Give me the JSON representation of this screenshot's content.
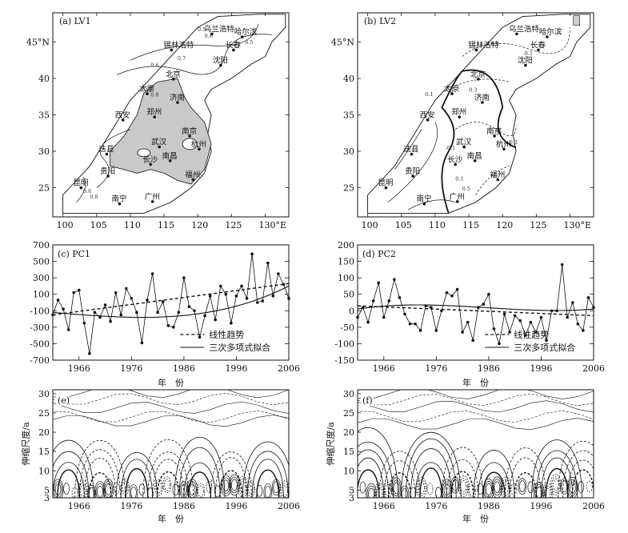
{
  "chart_data": [
    {
      "id": "a",
      "type": "map",
      "title": "(a) LV1",
      "lon_ticks": [
        "100",
        "105",
        "110",
        "115",
        "120",
        "125",
        "130°E"
      ],
      "lat_ticks": [
        "25",
        "30",
        "35",
        "40",
        "45°N"
      ],
      "cities": [
        {
          "name": "哈尔滨",
          "lon": 126.6,
          "lat": 45.7
        },
        {
          "name": "乌兰浩特",
          "lon": 122.1,
          "lat": 46.1
        },
        {
          "name": "长春",
          "lon": 125.3,
          "lat": 43.9
        },
        {
          "name": "锡林浩特",
          "lon": 116.1,
          "lat": 43.9
        },
        {
          "name": "沈阳",
          "lon": 123.4,
          "lat": 41.8
        },
        {
          "name": "北京",
          "lon": 116.4,
          "lat": 39.9
        },
        {
          "name": "太原",
          "lon": 112.5,
          "lat": 37.9
        },
        {
          "name": "济南",
          "lon": 117.0,
          "lat": 36.7
        },
        {
          "name": "郑州",
          "lon": 113.6,
          "lat": 34.7
        },
        {
          "name": "西安",
          "lon": 108.9,
          "lat": 34.3
        },
        {
          "name": "南京",
          "lon": 118.8,
          "lat": 32.1
        },
        {
          "name": "武汉",
          "lon": 114.3,
          "lat": 30.6
        },
        {
          "name": "杭州",
          "lon": 120.2,
          "lat": 30.3
        },
        {
          "name": "南昌",
          "lon": 115.9,
          "lat": 28.7
        },
        {
          "name": "长沙",
          "lon": 113.0,
          "lat": 28.2
        },
        {
          "name": "迭县",
          "lon": 106.5,
          "lat": 29.6
        },
        {
          "name": "贵阳",
          "lon": 106.7,
          "lat": 26.6
        },
        {
          "name": "昆明",
          "lon": 102.7,
          "lat": 25.0
        },
        {
          "name": "福州",
          "lon": 119.3,
          "lat": 26.1
        },
        {
          "name": "南宁",
          "lon": 108.4,
          "lat": 22.8
        },
        {
          "name": "广州",
          "lon": 113.3,
          "lat": 23.1
        }
      ],
      "contour_labels": [
        "0.5",
        "0.6",
        "0.5",
        "0.7",
        "0.6",
        "0.9",
        "0.8",
        "0.6",
        "0.8"
      ]
    },
    {
      "id": "b",
      "type": "map",
      "title": "(b) LV2",
      "lon_ticks": [
        "100",
        "105",
        "110",
        "115",
        "120",
        "125",
        "130°E"
      ],
      "lat_ticks": [
        "25",
        "30",
        "35",
        "40",
        "45°N"
      ],
      "cities": [
        {
          "name": "哈尔滨",
          "lon": 126.6,
          "lat": 45.7
        },
        {
          "name": "乌兰浩特",
          "lon": 122.1,
          "lat": 46.1
        },
        {
          "name": "长春",
          "lon": 125.3,
          "lat": 43.9
        },
        {
          "name": "锡林浩特",
          "lon": 116.1,
          "lat": 43.9
        },
        {
          "name": "沈阳",
          "lon": 123.4,
          "lat": 41.8
        },
        {
          "name": "北京",
          "lon": 116.4,
          "lat": 39.9
        },
        {
          "name": "太原",
          "lon": 112.5,
          "lat": 37.9
        },
        {
          "name": "济南",
          "lon": 117.0,
          "lat": 36.7
        },
        {
          "name": "郑州",
          "lon": 113.6,
          "lat": 34.7
        },
        {
          "name": "西安",
          "lon": 108.9,
          "lat": 34.3
        },
        {
          "name": "南京",
          "lon": 118.8,
          "lat": 32.1
        },
        {
          "name": "武汉",
          "lon": 114.3,
          "lat": 30.6
        },
        {
          "name": "杭州",
          "lon": 120.2,
          "lat": 30.3
        },
        {
          "name": "南昌",
          "lon": 115.9,
          "lat": 28.7
        },
        {
          "name": "长沙",
          "lon": 113.0,
          "lat": 28.2
        },
        {
          "name": "迭县",
          "lon": 106.5,
          "lat": 29.6
        },
        {
          "name": "贵阳",
          "lon": 106.7,
          "lat": 26.6
        },
        {
          "name": "昆明",
          "lon": 102.7,
          "lat": 25.0
        },
        {
          "name": "福州",
          "lon": 119.3,
          "lat": 26.1
        },
        {
          "name": "南宁",
          "lon": 108.4,
          "lat": 22.8
        },
        {
          "name": "广州",
          "lon": 113.3,
          "lat": 23.1
        }
      ],
      "contour_labels": [
        "-0.3",
        "0.3",
        "0.1",
        "-0.1",
        "0.1",
        "0.5",
        "0.3",
        "-0.1"
      ]
    },
    {
      "id": "c",
      "type": "line",
      "title": "(c) PC1",
      "xlabel": "年　份",
      "ylabel": "",
      "xlim": [
        1961,
        2006
      ],
      "ylim": [
        -700,
        700
      ],
      "y_ticks": [
        700,
        500,
        300,
        100,
        -100,
        -300,
        -500,
        -700
      ],
      "x_ticks": [
        1966,
        1976,
        1986,
        1996,
        2006
      ],
      "legend": [
        "线性趋势",
        "三次多项式拟合"
      ],
      "legend_position": "bottom-right",
      "years": [
        1961,
        1962,
        1963,
        1964,
        1965,
        1966,
        1967,
        1968,
        1969,
        1970,
        1971,
        1972,
        1973,
        1974,
        1975,
        1976,
        1977,
        1978,
        1979,
        1980,
        1981,
        1982,
        1983,
        1984,
        1985,
        1986,
        1987,
        1988,
        1989,
        1990,
        1991,
        1992,
        1993,
        1994,
        1995,
        1996,
        1997,
        1998,
        1999,
        2000,
        2001,
        2002,
        2003,
        2004,
        2005,
        2006
      ],
      "values": [
        -150,
        30,
        -80,
        -330,
        120,
        150,
        -250,
        -620,
        -120,
        -180,
        -30,
        -230,
        120,
        -150,
        170,
        50,
        -120,
        -490,
        30,
        350,
        -120,
        10,
        -280,
        -300,
        -120,
        300,
        -50,
        -100,
        -420,
        -160,
        80,
        -210,
        200,
        100,
        -250,
        80,
        200,
        50,
        590,
        0,
        20,
        480,
        80,
        350,
        220,
        50
      ],
      "linear_trend": {
        "start": -150,
        "end": 230
      },
      "poly3_fit": {
        "coeffs_t": [
          -120,
          -220,
          520,
          0
        ],
        "note": ""
      }
    },
    {
      "id": "d",
      "type": "line",
      "title": "(d) PC2",
      "xlabel": "年　份",
      "ylabel": "",
      "xlim": [
        1961,
        2006
      ],
      "ylim": [
        -150,
        200
      ],
      "y_ticks": [
        200,
        150,
        100,
        50,
        0,
        -50,
        -100,
        -150
      ],
      "x_ticks": [
        1966,
        1976,
        1986,
        1996,
        2006
      ],
      "legend": [
        "线性趋势",
        "三次多项式拟合"
      ],
      "legend_position": "bottom-right",
      "years": [
        1961,
        1962,
        1963,
        1964,
        1965,
        1966,
        1967,
        1968,
        1969,
        1970,
        1971,
        1972,
        1973,
        1974,
        1975,
        1976,
        1977,
        1978,
        1979,
        1980,
        1981,
        1982,
        1983,
        1984,
        1985,
        1986,
        1987,
        1988,
        1989,
        1990,
        1991,
        1992,
        1993,
        1994,
        1995,
        1996,
        1997,
        1998,
        1999,
        2000,
        2001,
        2002,
        2003,
        2004,
        2005,
        2006
      ],
      "values": [
        -20,
        10,
        -35,
        30,
        85,
        -20,
        30,
        95,
        40,
        -10,
        -40,
        -40,
        -60,
        15,
        10,
        -60,
        0,
        55,
        45,
        65,
        -65,
        -35,
        -90,
        10,
        20,
        50,
        -55,
        -100,
        -10,
        -65,
        -15,
        -30,
        -75,
        -35,
        -65,
        -20,
        -90,
        0,
        0,
        140,
        -20,
        25,
        -40,
        -60,
        40,
        10
      ],
      "linear_trend": {
        "start": 15,
        "end": -15
      }
    },
    {
      "id": "e",
      "type": "heatmap",
      "title": "(e)",
      "xlabel": "年　份",
      "ylabel": "伸缩尺度/a",
      "xlim": [
        1961,
        2006
      ],
      "ylim": [
        3,
        31
      ],
      "y_ticks": [
        3,
        5,
        10,
        15,
        20,
        25,
        30
      ],
      "x_ticks": [
        1966,
        1976,
        1986,
        1996,
        2006
      ],
      "style": "contour"
    },
    {
      "id": "f",
      "type": "heatmap",
      "title": "(f)",
      "xlabel": "年　份",
      "ylabel": "伸缩尺度/a",
      "xlim": [
        1961,
        2006
      ],
      "ylim": [
        3,
        31
      ],
      "y_ticks": [
        3,
        5,
        10,
        15,
        20,
        25,
        30
      ],
      "x_ticks": [
        1966,
        1976,
        1986,
        1996,
        2006
      ],
      "style": "contour"
    }
  ]
}
